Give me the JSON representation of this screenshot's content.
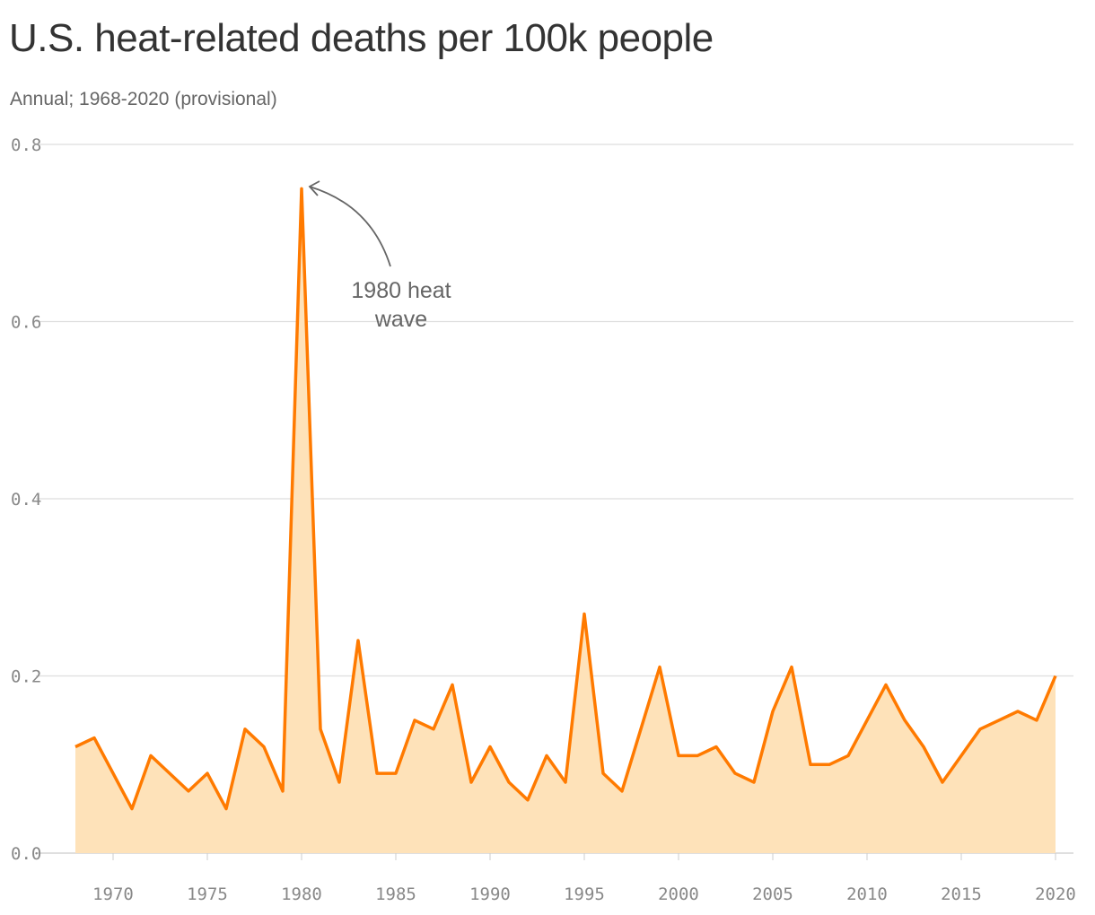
{
  "title": "U.S. heat-related deaths per 100k people",
  "subtitle": "Annual; 1968-2020 (provisional)",
  "chart_data": {
    "type": "area",
    "title": "U.S. heat-related deaths per 100k people",
    "subtitle": "Annual; 1968-2020 (provisional)",
    "xlabel": "",
    "ylabel": "",
    "xlim": [
      1968,
      2020
    ],
    "ylim": [
      0,
      0.8
    ],
    "grid": true,
    "x_ticks": [
      "1970",
      "1975",
      "1980",
      "1985",
      "1990",
      "1995",
      "2000",
      "2005",
      "2010",
      "2015",
      "2020"
    ],
    "y_ticks": [
      "0.0",
      "0.2",
      "0.4",
      "0.6",
      "0.8"
    ],
    "line_color": "#ff7a00",
    "fill_color": "#fee2b9",
    "x": [
      1968,
      1969,
      1970,
      1971,
      1972,
      1973,
      1974,
      1975,
      1976,
      1977,
      1978,
      1979,
      1980,
      1981,
      1982,
      1983,
      1984,
      1985,
      1986,
      1987,
      1988,
      1989,
      1990,
      1991,
      1992,
      1993,
      1994,
      1995,
      1996,
      1997,
      1998,
      1999,
      2000,
      2001,
      2002,
      2003,
      2004,
      2005,
      2006,
      2007,
      2008,
      2009,
      2010,
      2011,
      2012,
      2013,
      2014,
      2015,
      2016,
      2017,
      2018,
      2019,
      2020
    ],
    "values": [
      0.12,
      0.13,
      0.09,
      0.05,
      0.11,
      0.09,
      0.07,
      0.09,
      0.05,
      0.14,
      0.12,
      0.07,
      0.75,
      0.14,
      0.08,
      0.24,
      0.09,
      0.09,
      0.15,
      0.14,
      0.19,
      0.08,
      0.12,
      0.08,
      0.06,
      0.11,
      0.08,
      0.27,
      0.09,
      0.07,
      0.14,
      0.21,
      0.11,
      0.11,
      0.12,
      0.09,
      0.08,
      0.16,
      0.21,
      0.1,
      0.1,
      0.11,
      0.15,
      0.19,
      0.15,
      0.12,
      0.08,
      0.11,
      0.14,
      0.15,
      0.16,
      0.15,
      0.2
    ],
    "annotations": [
      {
        "text_lines": [
          "1980 heat",
          "wave"
        ],
        "x": 1980,
        "y": 0.75
      }
    ]
  }
}
